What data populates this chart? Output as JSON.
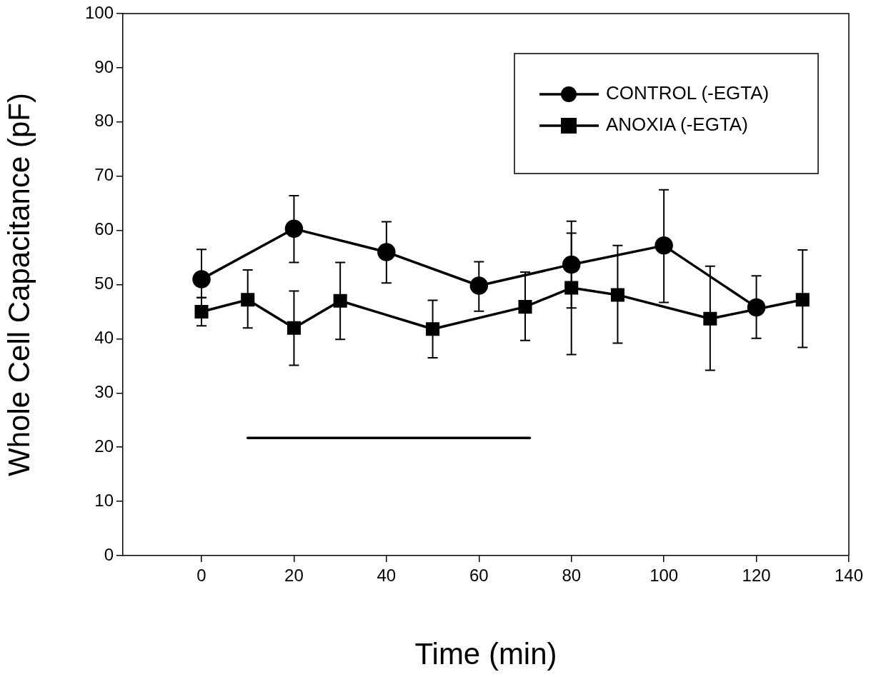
{
  "chart_data": {
    "type": "line",
    "xlabel": "Time (min)",
    "ylabel": "Whole Cell Capacitance (pF)",
    "xlim": [
      -17,
      140
    ],
    "xticks": [
      0,
      20,
      40,
      60,
      80,
      100,
      120,
      140
    ],
    "ylim": [
      0,
      100
    ],
    "yticks": [
      0,
      10,
      20,
      30,
      40,
      50,
      60,
      70,
      80,
      90,
      100
    ],
    "grid": false,
    "legend": "top right",
    "line_style": "solid",
    "series": [
      {
        "name": "CONTROL (-EGTA)",
        "color": "#000000",
        "marker": "circle",
        "x": [
          0,
          20,
          40,
          60,
          80,
          100,
          120
        ],
        "values": [
          51.0,
          60.3,
          56.0,
          49.8,
          53.7,
          57.2,
          45.8
        ],
        "errors": [
          [
            47.6,
            56.5
          ],
          [
            54.1,
            66.4
          ],
          [
            50.3,
            61.6
          ],
          [
            45.1,
            54.2
          ],
          [
            45.7,
            61.7
          ],
          [
            46.7,
            67.5
          ],
          [
            40.1,
            51.6
          ]
        ]
      },
      {
        "name": "ANOXIA (-EGTA)",
        "color": "#000000",
        "marker": "square",
        "x": [
          0,
          10,
          20,
          30,
          50,
          70,
          80,
          90,
          110,
          130
        ],
        "values": [
          45.0,
          47.2,
          42.0,
          47.0,
          41.8,
          45.9,
          49.4,
          48.1,
          43.7,
          47.2
        ],
        "errors": [
          [
            42.4,
            47.6
          ],
          [
            42.0,
            52.7
          ],
          [
            35.1,
            48.8
          ],
          [
            39.9,
            54.1
          ],
          [
            36.5,
            47.1
          ],
          [
            39.7,
            52.3
          ],
          [
            37.1,
            59.5
          ],
          [
            39.2,
            57.2
          ],
          [
            34.2,
            53.4
          ],
          [
            38.4,
            56.4
          ]
        ]
      },
      {
        "type": "line",
        "color": "#000000",
        "marker": "none",
        "x": [
          10,
          71
        ],
        "values": [
          21.7,
          21.7
        ]
      }
    ]
  }
}
